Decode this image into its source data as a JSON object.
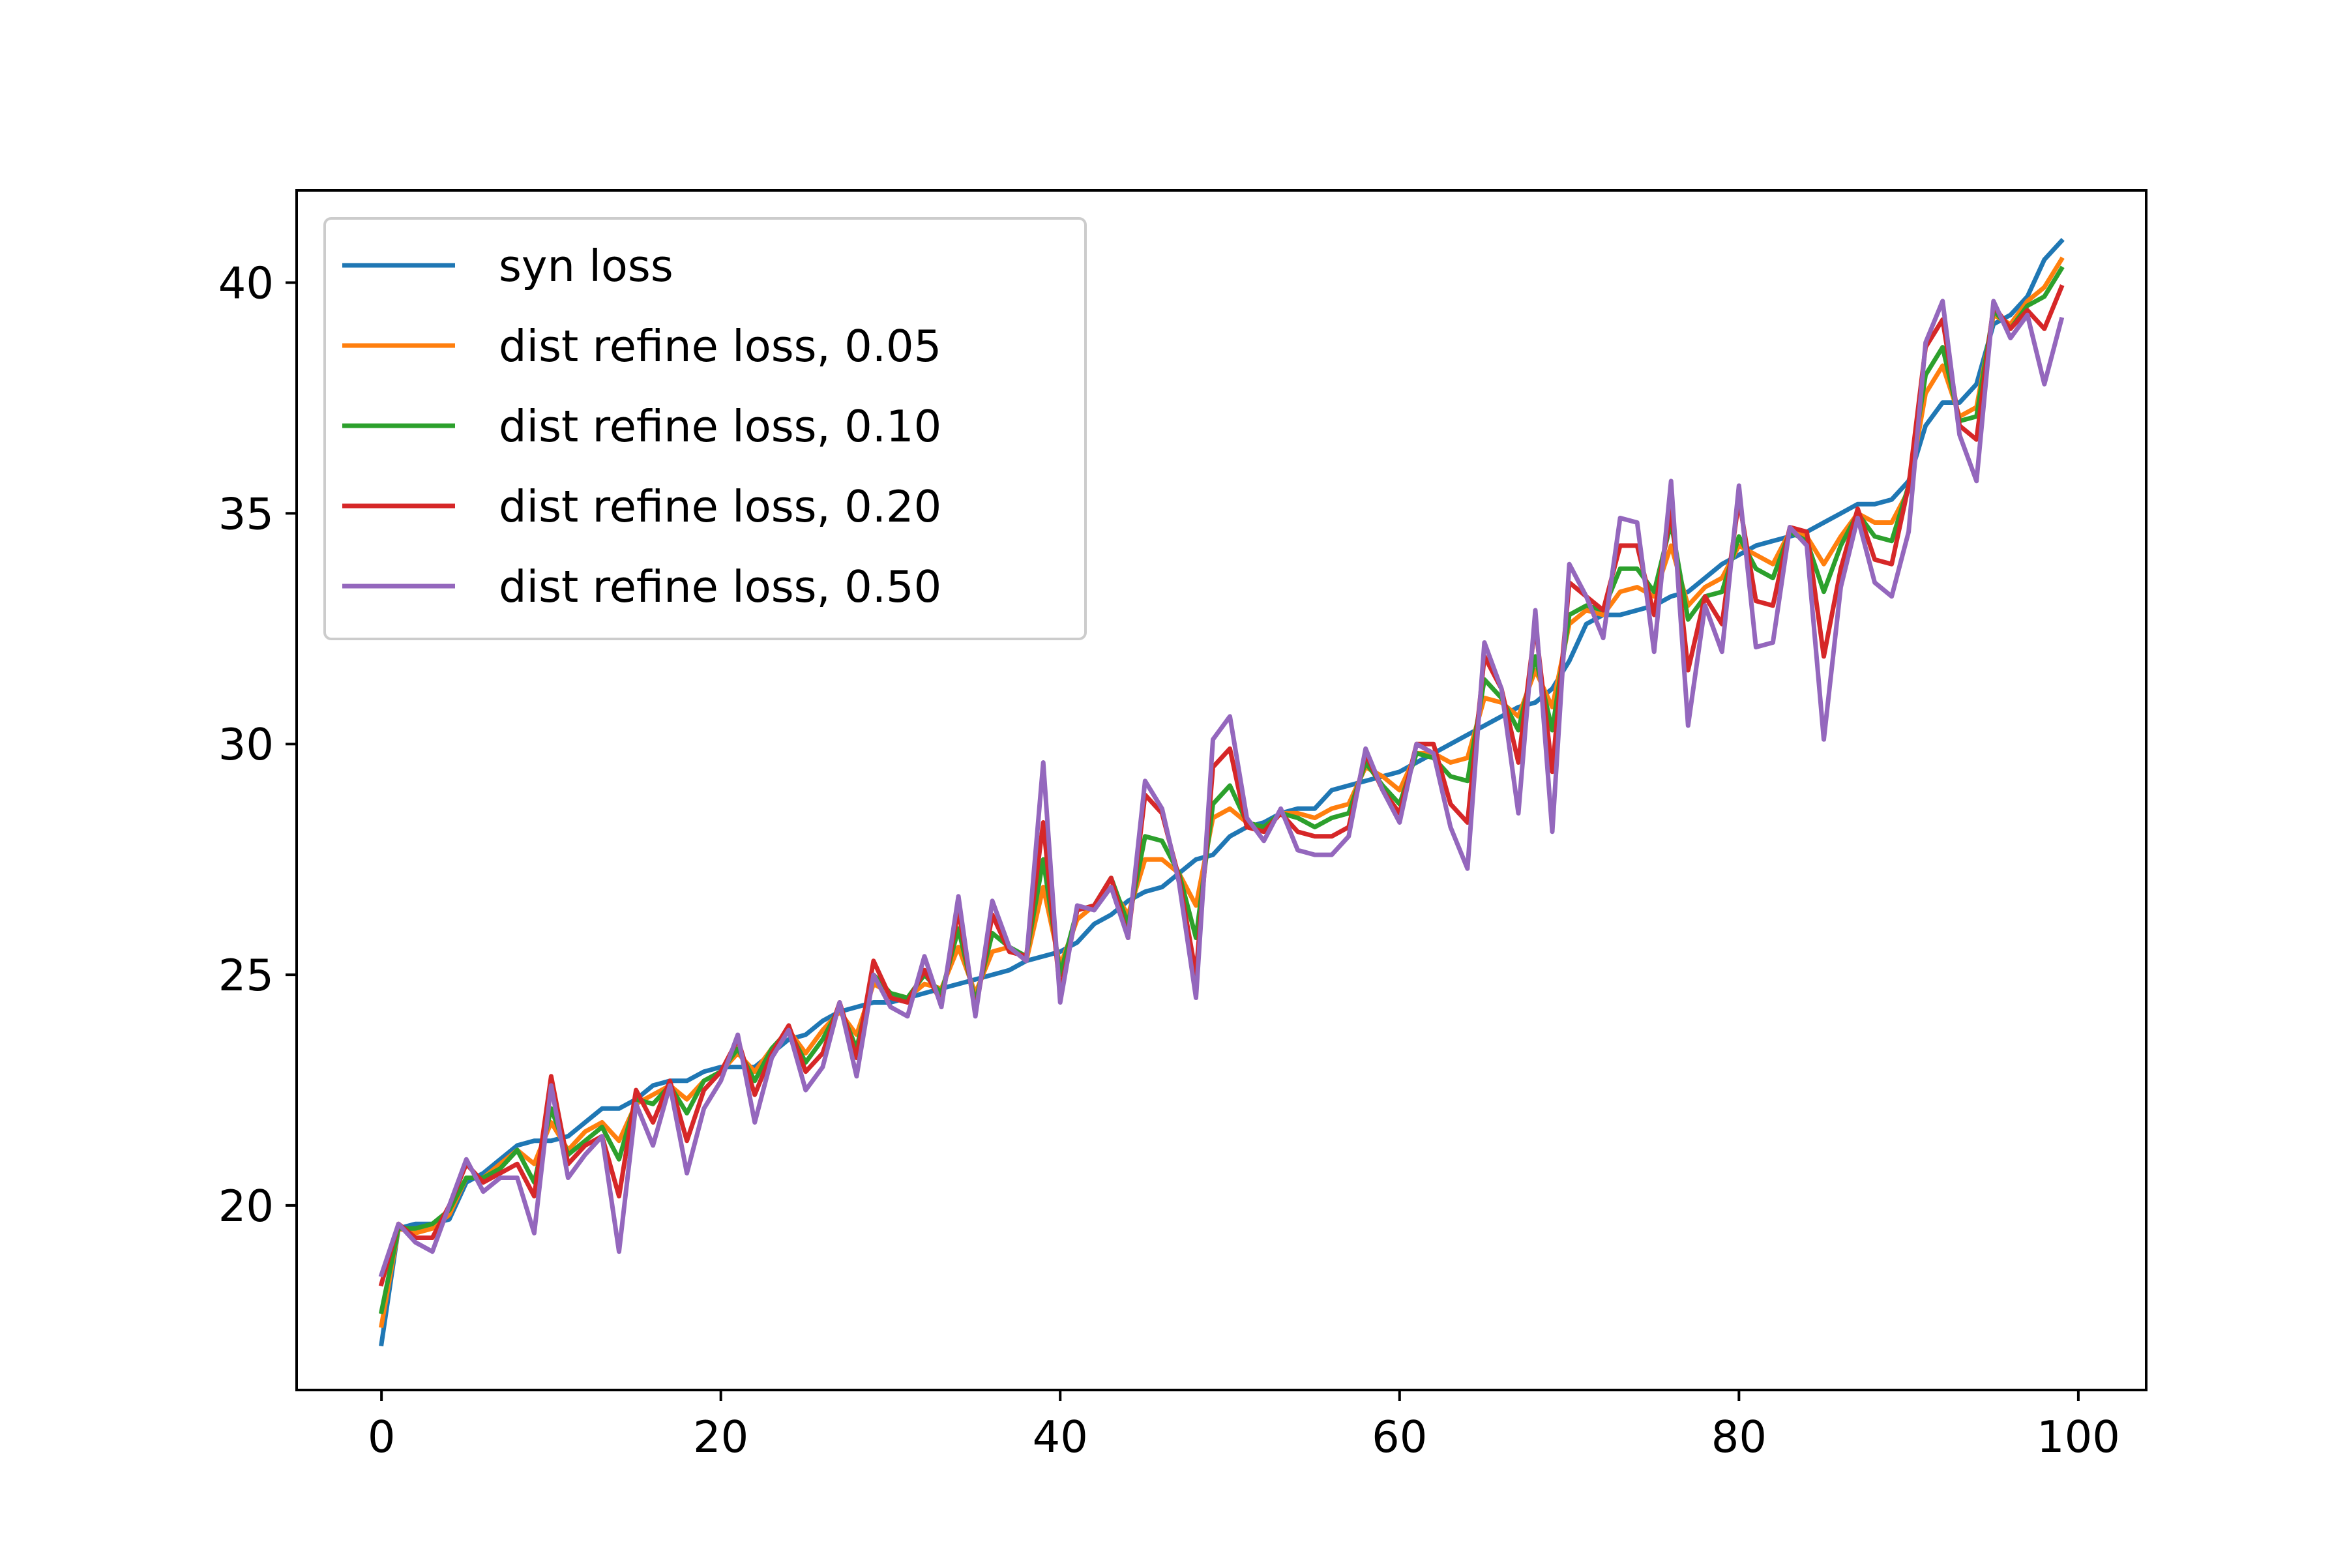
{
  "chart_data": {
    "type": "line",
    "title": "",
    "xlabel": "",
    "ylabel": "",
    "xlim": [
      -5,
      104
    ],
    "ylim": [
      16,
      42
    ],
    "xticks": [
      0,
      20,
      40,
      60,
      80,
      100
    ],
    "yticks": [
      20,
      25,
      30,
      35,
      40
    ],
    "grid": false,
    "legend_position": "upper-left",
    "x": [
      0,
      1,
      2,
      3,
      4,
      5,
      6,
      7,
      8,
      9,
      10,
      11,
      12,
      13,
      14,
      15,
      16,
      17,
      18,
      19,
      20,
      21,
      22,
      23,
      24,
      25,
      26,
      27,
      28,
      29,
      30,
      31,
      32,
      33,
      34,
      35,
      36,
      37,
      38,
      39,
      40,
      41,
      42,
      43,
      44,
      45,
      46,
      47,
      48,
      49,
      50,
      51,
      52,
      53,
      54,
      55,
      56,
      57,
      58,
      59,
      60,
      61,
      62,
      63,
      64,
      65,
      66,
      67,
      68,
      69,
      70,
      71,
      72,
      73,
      74,
      75,
      76,
      77,
      78,
      79,
      80,
      81,
      82,
      83,
      84,
      85,
      86,
      87,
      88,
      89,
      90,
      91,
      92,
      93,
      94,
      95,
      96,
      97,
      98,
      99
    ],
    "series": [
      {
        "name": "syn loss",
        "color": "#1f77b4",
        "values": [
          17.0,
          19.5,
          19.6,
          19.6,
          19.7,
          20.5,
          20.7,
          21.0,
          21.3,
          21.4,
          21.4,
          21.5,
          21.8,
          22.1,
          22.1,
          22.3,
          22.6,
          22.7,
          22.7,
          22.9,
          23.0,
          23.0,
          23.0,
          23.3,
          23.6,
          23.7,
          24.0,
          24.2,
          24.3,
          24.4,
          24.4,
          24.5,
          24.6,
          24.7,
          24.8,
          24.9,
          25.0,
          25.1,
          25.3,
          25.4,
          25.5,
          25.7,
          26.1,
          26.3,
          26.6,
          26.8,
          26.9,
          27.2,
          27.5,
          27.6,
          28.0,
          28.2,
          28.3,
          28.5,
          28.6,
          28.6,
          29.0,
          29.1,
          29.2,
          29.3,
          29.4,
          29.6,
          29.8,
          30.0,
          30.2,
          30.4,
          30.6,
          30.8,
          30.9,
          31.2,
          31.8,
          32.6,
          32.8,
          32.8,
          32.9,
          33.0,
          33.2,
          33.3,
          33.6,
          33.9,
          34.1,
          34.3,
          34.4,
          34.5,
          34.6,
          34.8,
          35.0,
          35.2,
          35.2,
          35.3,
          35.7,
          36.9,
          37.4,
          37.4,
          37.8,
          39.1,
          39.3,
          39.7,
          40.5,
          40.9
        ]
      },
      {
        "name": "dist refine loss, 0.05",
        "color": "#ff7f0e",
        "values": [
          17.4,
          19.5,
          19.4,
          19.5,
          19.8,
          20.6,
          20.6,
          20.9,
          21.2,
          20.9,
          21.8,
          21.2,
          21.6,
          21.8,
          21.4,
          22.2,
          22.4,
          22.6,
          22.3,
          22.7,
          22.9,
          23.3,
          22.9,
          23.4,
          23.8,
          23.3,
          23.8,
          24.2,
          23.7,
          24.8,
          24.6,
          24.5,
          24.8,
          24.7,
          25.6,
          24.6,
          25.5,
          25.6,
          25.3,
          26.9,
          25.2,
          26.2,
          26.5,
          26.9,
          26.3,
          27.5,
          27.5,
          27.2,
          26.5,
          28.4,
          28.6,
          28.3,
          28.2,
          28.5,
          28.5,
          28.4,
          28.6,
          28.7,
          29.5,
          29.3,
          29.0,
          29.8,
          29.8,
          29.6,
          29.7,
          31.0,
          30.9,
          30.6,
          31.6,
          30.8,
          32.6,
          32.9,
          32.8,
          33.3,
          33.4,
          33.2,
          34.3,
          33.0,
          33.4,
          33.6,
          34.3,
          34.1,
          33.9,
          34.6,
          34.5,
          33.9,
          34.5,
          35.0,
          34.8,
          34.8,
          35.5,
          37.6,
          38.2,
          37.1,
          37.3,
          39.3,
          39.1,
          39.6,
          39.9,
          40.5
        ]
      },
      {
        "name": "dist refine loss, 0.10",
        "color": "#2ca02c",
        "values": [
          17.7,
          19.5,
          19.5,
          19.6,
          19.9,
          20.6,
          20.6,
          20.8,
          21.2,
          20.5,
          22.1,
          21.1,
          21.4,
          21.7,
          21.0,
          22.3,
          22.2,
          22.6,
          22.0,
          22.7,
          22.9,
          23.4,
          22.7,
          23.4,
          23.8,
          23.1,
          23.6,
          24.3,
          23.4,
          25.0,
          24.6,
          24.5,
          25.0,
          24.6,
          26.0,
          24.4,
          25.9,
          25.6,
          25.4,
          27.5,
          25.0,
          26.4,
          26.5,
          27.1,
          26.1,
          28.0,
          27.9,
          27.2,
          25.8,
          28.7,
          29.1,
          28.3,
          28.2,
          28.5,
          28.4,
          28.2,
          28.4,
          28.5,
          29.6,
          29.1,
          28.7,
          29.8,
          29.7,
          29.3,
          29.2,
          31.4,
          31.0,
          30.3,
          31.9,
          30.3,
          32.8,
          33.0,
          32.9,
          33.8,
          33.8,
          33.3,
          34.8,
          32.7,
          33.2,
          33.3,
          34.5,
          33.8,
          33.6,
          34.6,
          34.4,
          33.3,
          34.3,
          35.0,
          34.5,
          34.4,
          35.6,
          38.0,
          38.6,
          37.0,
          37.1,
          39.4,
          39.0,
          39.5,
          39.7,
          40.3
        ]
      },
      {
        "name": "dist refine loss, 0.20",
        "color": "#d62728",
        "values": [
          18.3,
          19.6,
          19.3,
          19.3,
          20.0,
          20.9,
          20.5,
          20.7,
          20.9,
          20.2,
          22.8,
          20.9,
          21.3,
          21.5,
          20.2,
          22.5,
          21.8,
          22.7,
          21.4,
          22.5,
          22.9,
          23.6,
          22.4,
          23.3,
          23.9,
          22.9,
          23.3,
          24.4,
          23.2,
          25.3,
          24.5,
          24.4,
          25.1,
          24.4,
          26.4,
          24.2,
          26.3,
          25.5,
          25.4,
          28.3,
          24.6,
          26.4,
          26.5,
          27.1,
          25.8,
          28.9,
          28.5,
          27.1,
          25.0,
          29.5,
          29.9,
          28.2,
          28.1,
          28.5,
          28.1,
          28.0,
          28.0,
          28.2,
          29.8,
          29.0,
          28.5,
          30.0,
          30.0,
          28.7,
          28.3,
          31.9,
          31.2,
          29.6,
          32.6,
          29.4,
          33.5,
          33.2,
          32.9,
          34.3,
          34.3,
          32.8,
          35.1,
          31.6,
          33.2,
          32.6,
          35.3,
          33.1,
          33.0,
          34.7,
          34.6,
          31.9,
          33.8,
          35.1,
          34.0,
          33.9,
          35.6,
          38.6,
          39.2,
          36.9,
          36.6,
          39.5,
          39.0,
          39.4,
          39.0,
          39.9
        ]
      },
      {
        "name": "dist refine loss, 0.50",
        "color": "#9467bd",
        "values": [
          18.5,
          19.6,
          19.2,
          19.0,
          20.0,
          21.0,
          20.3,
          20.6,
          20.6,
          19.4,
          22.6,
          20.6,
          21.1,
          21.5,
          19.0,
          22.2,
          21.3,
          22.6,
          20.7,
          22.1,
          22.7,
          23.7,
          21.8,
          23.2,
          23.8,
          22.5,
          23.0,
          24.4,
          22.8,
          25.0,
          24.3,
          24.1,
          25.4,
          24.3,
          26.7,
          24.1,
          26.6,
          25.6,
          25.3,
          29.6,
          24.4,
          26.5,
          26.4,
          26.9,
          25.8,
          29.2,
          28.6,
          27.0,
          24.5,
          30.1,
          30.6,
          28.4,
          27.9,
          28.6,
          27.7,
          27.6,
          27.6,
          28.0,
          29.9,
          29.0,
          28.3,
          30.0,
          29.8,
          28.2,
          27.3,
          32.2,
          31.2,
          28.5,
          32.9,
          28.1,
          33.9,
          33.2,
          32.3,
          34.9,
          34.8,
          32.0,
          35.7,
          30.4,
          33.0,
          32.0,
          35.6,
          32.1,
          32.2,
          34.7,
          34.3,
          30.1,
          33.4,
          34.9,
          33.5,
          33.2,
          34.6,
          38.7,
          39.6,
          36.7,
          35.7,
          39.6,
          38.8,
          39.3,
          37.8,
          39.2
        ]
      }
    ]
  }
}
